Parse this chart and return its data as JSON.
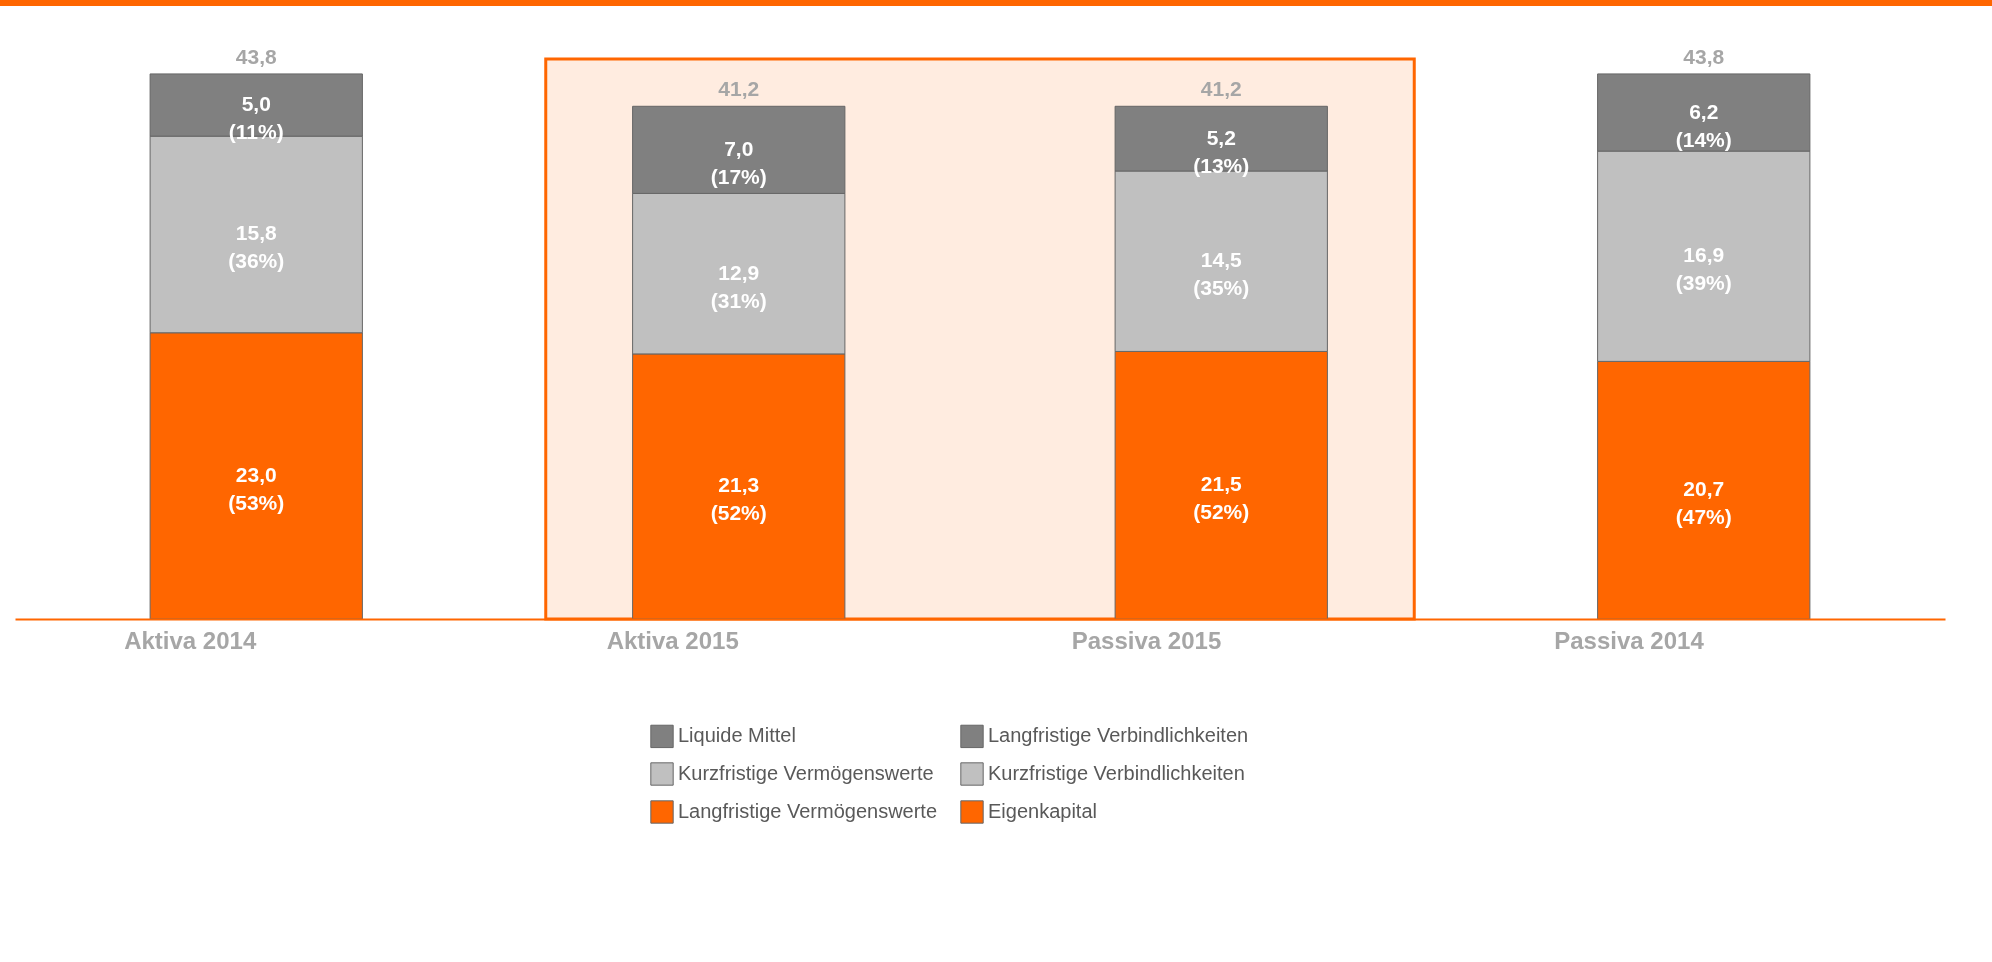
{
  "chart_data": {
    "type": "bar",
    "stacked": true,
    "categories": [
      "Aktiva 2014",
      "Aktiva 2015",
      "Passiva 2015",
      "Passiva 2014"
    ],
    "series": [
      {
        "name": "Langfristige Vermögenswerte",
        "color": "#ff6600",
        "values": [
          23.0,
          21.3,
          null,
          null
        ],
        "value_labels": [
          "23,0 (53%)",
          "21,3 (52%)",
          null,
          null
        ]
      },
      {
        "name": "Kurzfristige Vermögenswerte",
        "color": "#c0c0c0",
        "values": [
          15.8,
          12.9,
          null,
          null
        ],
        "value_labels": [
          "15,8 (36%)",
          "12,9 (31%)",
          null,
          null
        ]
      },
      {
        "name": "Liquide Mittel",
        "color": "#808080",
        "values": [
          5.0,
          7.0,
          null,
          null
        ],
        "value_labels": [
          "5,0 (11%)",
          "7,0 (17%)",
          null,
          null
        ]
      },
      {
        "name": "Eigenkapital",
        "color": "#ff6600",
        "values": [
          null,
          null,
          21.5,
          20.7
        ],
        "value_labels": [
          null,
          null,
          "21,5 (52%)",
          "20,7 (47%)"
        ]
      },
      {
        "name": "Kurzfristige Verbindlichkeiten",
        "color": "#c0c0c0",
        "values": [
          null,
          null,
          14.5,
          16.9
        ],
        "value_labels": [
          null,
          null,
          "14,5 (35%)",
          "16,9 (39%)"
        ]
      },
      {
        "name": "Langfristige Verbindlichkeiten",
        "color": "#808080",
        "values": [
          null,
          null,
          5.2,
          6.2
        ],
        "value_labels": [
          null,
          null,
          "5,2 (13%)",
          "6,2 (14%)"
        ]
      }
    ],
    "totals": [
      "43,8",
      "41,2",
      "41,2",
      "43,8"
    ],
    "bands": [
      {
        "axis": "x",
        "from": "Aktiva 2015",
        "to": "Passiva 2015",
        "color": "#ff6600"
      }
    ],
    "legend": "bottom",
    "grid": false
  }
}
